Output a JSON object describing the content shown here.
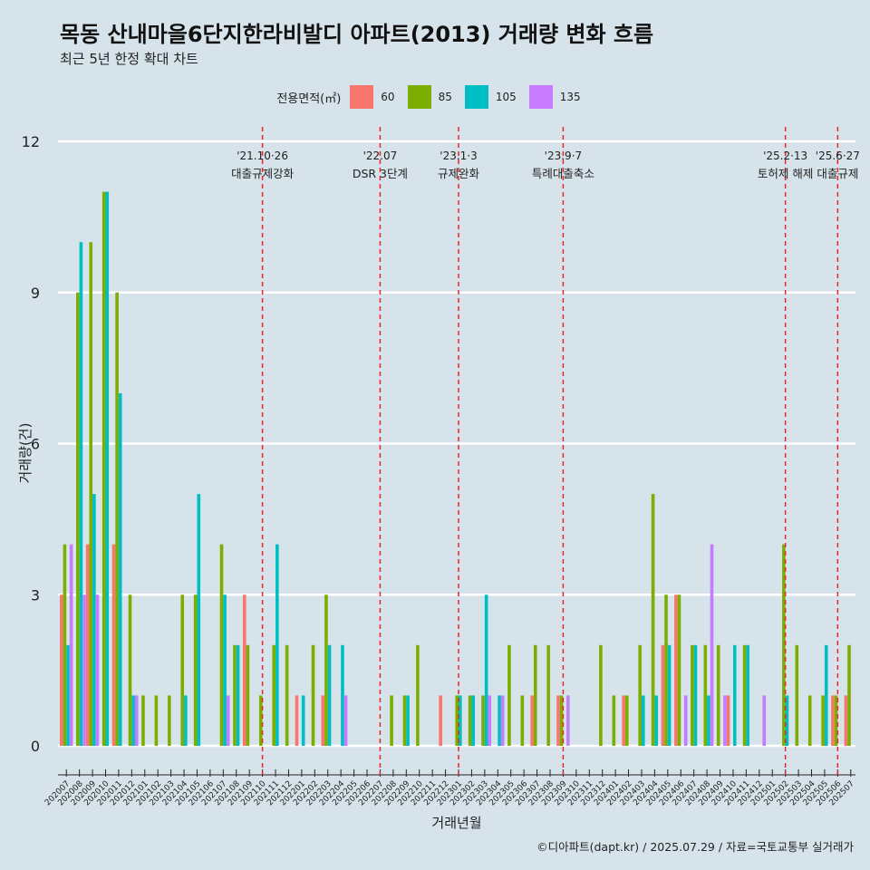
{
  "header": {
    "title": "목동 산내마을6단지한라비발디 아파트(2013) 거래량 변화 흐름",
    "subtitle": "최근 5년 한정 확대 차트"
  },
  "legend": {
    "title": "전용면적(㎡)",
    "items": [
      {
        "label": "60",
        "color": "#f8766d"
      },
      {
        "label": "85",
        "color": "#7cae00"
      },
      {
        "label": "105",
        "color": "#00bfc4"
      },
      {
        "label": "135",
        "color": "#c77cff"
      }
    ]
  },
  "footer": {
    "source": "©디아파트(dapt.kr) / 2025.07.29 / 자료=국토교통부 실거래가"
  },
  "chart_data": {
    "type": "bar",
    "xlabel": "거래년월",
    "ylabel": "거래량(건)",
    "ylim": [
      0,
      12
    ],
    "yticks": [
      0,
      3,
      6,
      9,
      12
    ],
    "grid": true,
    "legend_position": "top",
    "categories": [
      "202007",
      "202008",
      "202009",
      "202010",
      "202011",
      "202012",
      "202101",
      "202102",
      "202103",
      "202104",
      "202105",
      "202106",
      "202107",
      "202108",
      "202109",
      "202110",
      "202111",
      "202112",
      "202201",
      "202202",
      "202203",
      "202204",
      "202205",
      "202206",
      "202207",
      "202208",
      "202209",
      "202210",
      "202211",
      "202212",
      "202301",
      "202302",
      "202303",
      "202304",
      "202305",
      "202306",
      "202307",
      "202308",
      "202309",
      "202310",
      "202311",
      "202312",
      "202401",
      "202402",
      "202403",
      "202404",
      "202405",
      "202406",
      "202407",
      "202408",
      "202409",
      "202410",
      "202411",
      "202412",
      "202501",
      "202502",
      "202503",
      "202504",
      "202505",
      "202506",
      "202507"
    ],
    "series": [
      {
        "name": "60",
        "color": "#f8766d",
        "values": [
          3,
          0,
          4,
          0,
          4,
          0,
          0,
          0,
          0,
          0,
          0,
          0,
          0,
          0,
          3,
          0,
          0,
          0,
          1,
          0,
          1,
          0,
          0,
          0,
          0,
          0,
          0,
          0,
          0,
          1,
          0,
          0,
          0,
          0,
          0,
          0,
          1,
          0,
          1,
          0,
          0,
          0,
          0,
          1,
          0,
          0,
          2,
          3,
          0,
          0,
          0,
          1,
          0,
          0,
          0,
          0,
          0,
          0,
          0,
          1,
          1
        ]
      },
      {
        "name": "85",
        "color": "#7cae00",
        "values": [
          4,
          9,
          10,
          11,
          9,
          3,
          1,
          1,
          1,
          3,
          3,
          0,
          4,
          2,
          2,
          1,
          2,
          2,
          0,
          2,
          3,
          0,
          0,
          0,
          0,
          1,
          1,
          2,
          0,
          0,
          1,
          1,
          1,
          0,
          2,
          1,
          2,
          2,
          1,
          0,
          0,
          2,
          1,
          1,
          2,
          5,
          3,
          3,
          2,
          2,
          2,
          0,
          2,
          0,
          0,
          4,
          2,
          1,
          1,
          1,
          2
        ]
      },
      {
        "name": "105",
        "color": "#00bfc4",
        "values": [
          2,
          10,
          5,
          11,
          7,
          1,
          0,
          0,
          0,
          1,
          5,
          0,
          3,
          2,
          0,
          0,
          4,
          0,
          1,
          0,
          2,
          2,
          0,
          0,
          0,
          0,
          1,
          0,
          0,
          0,
          1,
          1,
          3,
          1,
          0,
          0,
          0,
          0,
          0,
          0,
          0,
          0,
          0,
          0,
          1,
          1,
          2,
          0,
          2,
          1,
          0,
          2,
          2,
          0,
          0,
          1,
          0,
          0,
          2,
          0,
          0
        ]
      },
      {
        "name": "135",
        "color": "#c77cff",
        "values": [
          4,
          3,
          3,
          0,
          0,
          1,
          0,
          0,
          0,
          0,
          0,
          0,
          1,
          0,
          0,
          0,
          0,
          0,
          0,
          0,
          0,
          1,
          0,
          0,
          0,
          0,
          0,
          0,
          0,
          0,
          0,
          0,
          1,
          1,
          0,
          0,
          0,
          0,
          1,
          0,
          0,
          0,
          0,
          0,
          0,
          0,
          0,
          1,
          0,
          4,
          1,
          0,
          0,
          1,
          0,
          0,
          0,
          0,
          0,
          0,
          0
        ]
      }
    ],
    "annotations": [
      {
        "at": "202110",
        "date": "'21.10·26",
        "label": "대출규제강화"
      },
      {
        "at": "202207",
        "date": "'22.07",
        "label": "DSR 3단계"
      },
      {
        "at": "202301",
        "date": "'23.1·3",
        "label": "규제완화"
      },
      {
        "at": "202309",
        "date": "'23.9·7",
        "label": "특례대출축소"
      },
      {
        "at": "202502",
        "date": "'25.2·13",
        "label": "토허제 해제"
      },
      {
        "at": "202506",
        "date": "'25.6·27",
        "label": "대출규제"
      }
    ]
  }
}
